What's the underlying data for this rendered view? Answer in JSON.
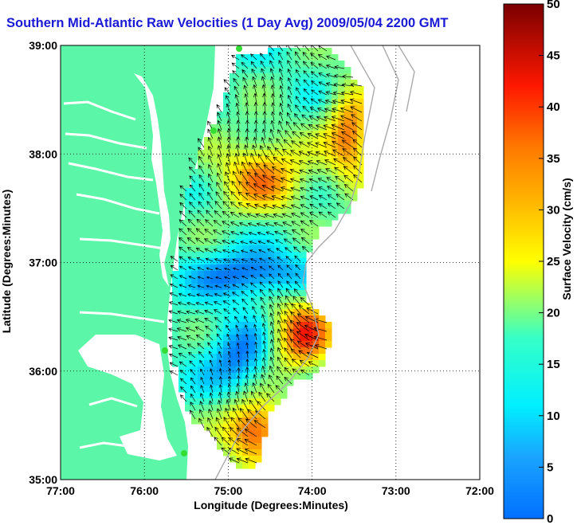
{
  "title": "Southern Mid-Atlantic Raw Velocities (1 Day Avg) 2009/05/04 2200 GMT",
  "map": {
    "x_axis": {
      "label": "Longitude (Degrees:Minutes)",
      "ticks": [
        "77:00",
        "76:00",
        "75:00",
        "74:00",
        "73:00",
        "72:00"
      ]
    },
    "y_axis": {
      "label": "Latitude (Degrees:Minutes)",
      "ticks": [
        "39:00",
        "38:00",
        "37:00",
        "36:00",
        "35:00"
      ]
    },
    "grid": "dotted",
    "land_color": "#5cf6a8",
    "ocean_color": "#ffffff",
    "station_color": "#33dd33"
  },
  "colorbar": {
    "label": "Surface Velocity (cm/s)",
    "min": 0,
    "max": 50,
    "ticks": [
      "0",
      "5",
      "10",
      "15",
      "20",
      "25",
      "30",
      "35",
      "40",
      "45",
      "50"
    ],
    "colormap": "jet"
  }
}
